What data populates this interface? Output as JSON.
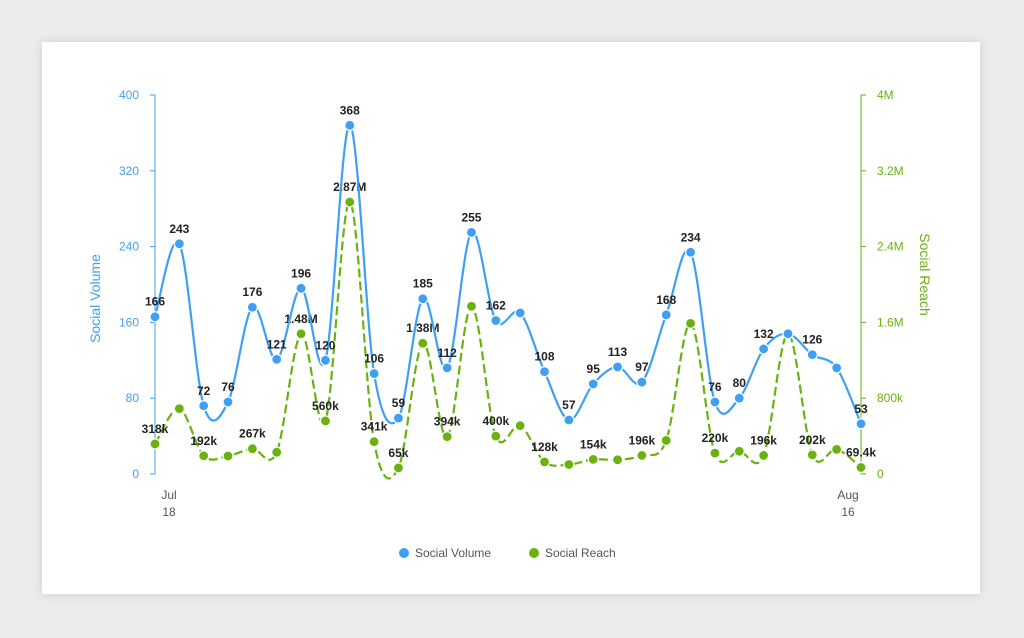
{
  "colors": {
    "volume": "#3fa0f3",
    "reach": "#6ab20f",
    "axis_text": "#555555"
  },
  "chart_data": {
    "type": "line",
    "x": [
      "Jul 18",
      "Jul 19",
      "Jul 20",
      "Jul 21",
      "Jul 22",
      "Jul 23",
      "Jul 24",
      "Jul 25",
      "Jul 26",
      "Jul 27",
      "Jul 28",
      "Jul 29",
      "Jul 30",
      "Jul 31",
      "Aug 1",
      "Aug 2",
      "Aug 3",
      "Aug 4",
      "Aug 5",
      "Aug 6",
      "Aug 7",
      "Aug 8",
      "Aug 9",
      "Aug 10",
      "Aug 11",
      "Aug 12",
      "Aug 13",
      "Aug 14",
      "Aug 15",
      "Aug 16"
    ],
    "x_tick_labels": [
      {
        "line1": "Jul",
        "line2": "18"
      },
      {
        "line1": "Aug",
        "line2": "16"
      }
    ],
    "series": [
      {
        "name": "Social Volume",
        "axis": "left",
        "values": [
          166,
          243,
          72,
          76,
          176,
          121,
          196,
          120,
          368,
          106,
          59,
          185,
          112,
          255,
          162,
          170,
          108,
          57,
          95,
          113,
          97,
          168,
          234,
          76,
          80,
          132,
          148,
          126,
          112,
          53
        ],
        "labels": [
          "166",
          "243",
          "72",
          "76",
          "176",
          "121",
          "196",
          "120",
          "368",
          "106",
          "59",
          "185",
          "112",
          "255",
          "162",
          "",
          "108",
          "57",
          "95",
          "113",
          "97",
          "168",
          "234",
          "76",
          "80",
          "132",
          "",
          "126",
          "",
          "53"
        ]
      },
      {
        "name": "Social Reach",
        "axis": "right",
        "values": [
          318000,
          690000,
          192000,
          190000,
          267000,
          230000,
          1480000,
          560000,
          2870000,
          341000,
          65000,
          1380000,
          394000,
          1770000,
          400000,
          510000,
          128000,
          100000,
          154000,
          150000,
          196000,
          355000,
          1590000,
          220000,
          240000,
          196000,
          1480000,
          202000,
          260000,
          69400
        ],
        "labels": [
          "318k",
          "",
          "192k",
          "",
          "267k",
          "",
          "1.48M",
          "560k",
          "2.87M",
          "341k",
          "65k",
          "1.38M",
          "394k",
          "",
          "400k",
          "",
          "128k",
          "",
          "154k",
          "",
          "196k",
          "",
          "",
          "220k",
          "",
          "196k",
          "",
          "202k",
          "",
          "69.4k"
        ]
      }
    ],
    "y_left": {
      "title": "Social Volume",
      "min": 0,
      "max": 400,
      "ticks": [
        "0",
        "80",
        "160",
        "240",
        "320",
        "400"
      ]
    },
    "y_right": {
      "title": "Social Reach",
      "min": 0,
      "max": 4000000,
      "ticks": [
        "0",
        "800k",
        "1.6M",
        "2.4M",
        "3.2M",
        "4M"
      ]
    },
    "grid": false,
    "legend": {
      "placement": "bottom-center",
      "items": [
        "Social Volume",
        "Social Reach"
      ]
    }
  }
}
